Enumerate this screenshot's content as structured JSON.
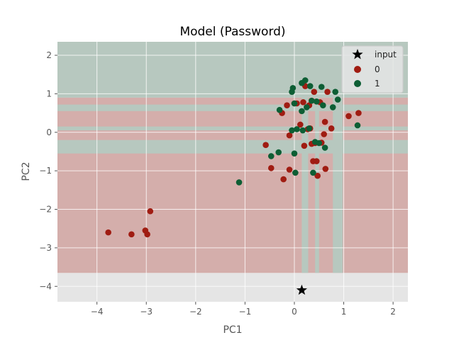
{
  "chart_data": {
    "type": "scatter",
    "title": "Model (Password)",
    "xlabel": "PC1",
    "ylabel": "PC2",
    "xlim": [
      -4.8,
      2.3
    ],
    "ylim": [
      -4.4,
      2.35
    ],
    "x_ticks": [
      -4,
      -3,
      -2,
      -1,
      0,
      1,
      2
    ],
    "y_ticks": [
      -4,
      -3,
      -2,
      -1,
      0,
      1,
      2
    ],
    "x_tick_labels": [
      "−4",
      "−3",
      "−2",
      "−1",
      "0",
      "1",
      "2"
    ],
    "y_tick_labels": [
      "−4",
      "−3",
      "−2",
      "−1",
      "0",
      "1",
      "2"
    ],
    "grid": true,
    "legend_position": "top-right",
    "colors": {
      "class_0": "#a01c12",
      "class_1": "#0d5e34",
      "input": "#000000",
      "region_0": "#d4aeab",
      "region_1": "#b7c8bf",
      "background": "#e5e5e5"
    },
    "decision_regions": {
      "band_1_y": [
        0.9,
        2.35
      ],
      "band_0_y": [
        -3.65,
        0.9
      ],
      "band_1_x_columns": [
        [
          0.15,
          0.28
        ],
        [
          0.42,
          0.5
        ],
        [
          0.78,
          0.98
        ]
      ],
      "band_1_y_rows": [
        [
          -0.55,
          -0.2
        ],
        [
          0.05,
          0.15
        ],
        [
          0.55,
          0.72
        ]
      ]
    },
    "series": [
      {
        "name": "input",
        "marker": "star",
        "points": [
          [
            0.15,
            -4.1
          ]
        ]
      },
      {
        "name": "0",
        "marker": "circle",
        "points": [
          [
            -3.77,
            -2.6
          ],
          [
            -3.3,
            -2.65
          ],
          [
            -3.02,
            -2.55
          ],
          [
            -2.98,
            -2.65
          ],
          [
            -2.92,
            -2.05
          ],
          [
            -0.58,
            -0.33
          ],
          [
            -0.47,
            -0.93
          ],
          [
            -0.25,
            0.5
          ],
          [
            -0.22,
            -1.22
          ],
          [
            -0.15,
            0.7
          ],
          [
            -0.1,
            -0.08
          ],
          [
            -0.1,
            -0.97
          ],
          [
            0.0,
            0.75
          ],
          [
            0.05,
            0.75
          ],
          [
            0.12,
            0.2
          ],
          [
            0.18,
            0.78
          ],
          [
            0.2,
            -0.35
          ],
          [
            0.22,
            1.2
          ],
          [
            0.27,
            0.08
          ],
          [
            0.3,
            0.7
          ],
          [
            0.32,
            0.1
          ],
          [
            0.35,
            -0.3
          ],
          [
            0.38,
            -0.75
          ],
          [
            0.4,
            1.05
          ],
          [
            0.42,
            -0.28
          ],
          [
            0.45,
            -0.75
          ],
          [
            0.47,
            -1.13
          ],
          [
            0.52,
            0.78
          ],
          [
            0.55,
            -0.27
          ],
          [
            0.6,
            -0.05
          ],
          [
            0.62,
            0.27
          ],
          [
            0.63,
            -0.95
          ],
          [
            0.67,
            1.05
          ],
          [
            0.75,
            0.1
          ],
          [
            1.1,
            0.42
          ],
          [
            1.3,
            0.5
          ]
        ]
      },
      {
        "name": "1",
        "marker": "circle",
        "points": [
          [
            -1.12,
            -1.3
          ],
          [
            -0.47,
            -0.62
          ],
          [
            -0.32,
            -0.52
          ],
          [
            -0.3,
            0.58
          ],
          [
            -0.05,
            1.05
          ],
          [
            -0.05,
            0.05
          ],
          [
            -0.03,
            1.15
          ],
          [
            0.0,
            -0.55
          ],
          [
            0.0,
            0.75
          ],
          [
            0.02,
            -1.05
          ],
          [
            0.05,
            0.08
          ],
          [
            0.15,
            1.28
          ],
          [
            0.15,
            0.55
          ],
          [
            0.17,
            0.05
          ],
          [
            0.22,
            1.35
          ],
          [
            0.25,
            0.65
          ],
          [
            0.3,
            0.1
          ],
          [
            0.32,
            1.2
          ],
          [
            0.35,
            0.82
          ],
          [
            0.38,
            -1.05
          ],
          [
            0.42,
            -0.25
          ],
          [
            0.45,
            0.8
          ],
          [
            0.5,
            -0.28
          ],
          [
            0.55,
            1.18
          ],
          [
            0.58,
            0.7
          ],
          [
            0.62,
            -0.4
          ],
          [
            0.78,
            0.65
          ],
          [
            0.83,
            1.05
          ],
          [
            0.88,
            0.85
          ],
          [
            1.28,
            0.18
          ]
        ]
      }
    ]
  }
}
